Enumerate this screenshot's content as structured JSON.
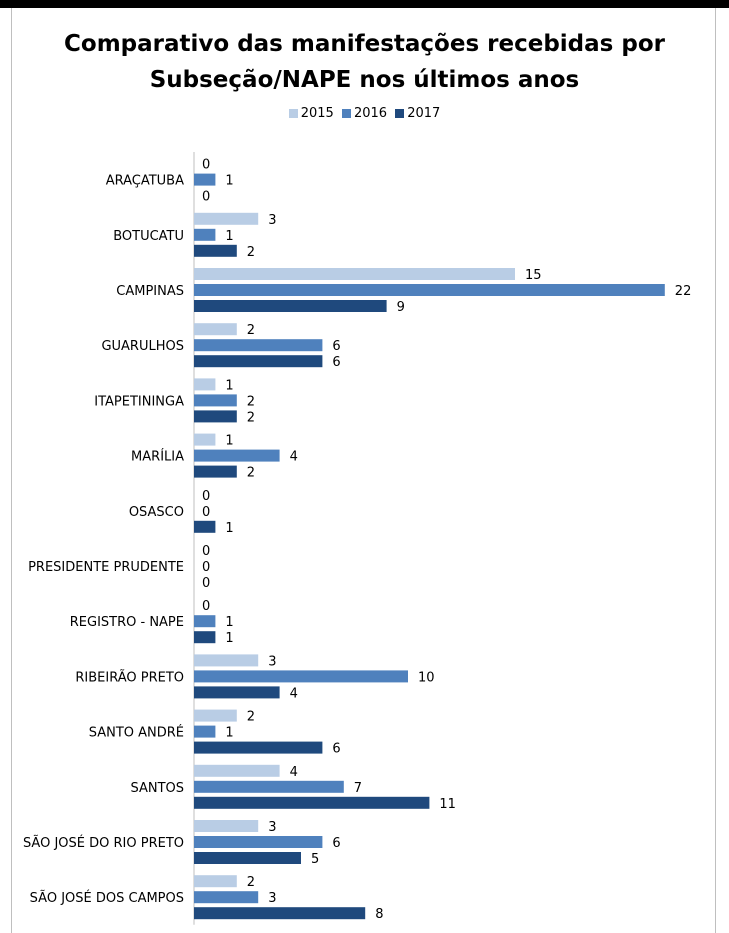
{
  "chart_data": {
    "type": "bar",
    "orientation": "horizontal",
    "title": "Comparativo das manifestações recebidas por Subseção/NAPE nos últimos anos",
    "title_lines": [
      "Comparativo das manifestações recebidas por",
      "Subseção/NAPE nos últimos anos"
    ],
    "categories": [
      "ARAÇATUBA",
      "BOTUCATU",
      "CAMPINAS",
      "GUARULHOS",
      "ITAPETININGA",
      "MARÍLIA",
      "OSASCO",
      "PRESIDENTE PRUDENTE",
      "REGISTRO - NAPE",
      "RIBEIRÃO PRETO",
      "SANTO ANDRÉ",
      "SANTOS",
      "SÃO JOSÉ DO RIO PRETO",
      "SÃO JOSÉ DOS CAMPOS"
    ],
    "series": [
      {
        "name": "2015",
        "color": "#b9cde5",
        "values": [
          0,
          3,
          15,
          2,
          1,
          1,
          0,
          0,
          0,
          3,
          2,
          4,
          3,
          2
        ]
      },
      {
        "name": "2016",
        "color": "#4f81bd",
        "values": [
          1,
          1,
          22,
          6,
          2,
          4,
          0,
          0,
          1,
          10,
          1,
          7,
          6,
          3
        ]
      },
      {
        "name": "2017",
        "color": "#1f497d",
        "values": [
          0,
          2,
          9,
          6,
          2,
          2,
          1,
          0,
          1,
          4,
          6,
          11,
          5,
          8
        ]
      }
    ],
    "legend_position": "top",
    "data_labels": true,
    "grid": false,
    "xlim": [
      0,
      22
    ]
  }
}
